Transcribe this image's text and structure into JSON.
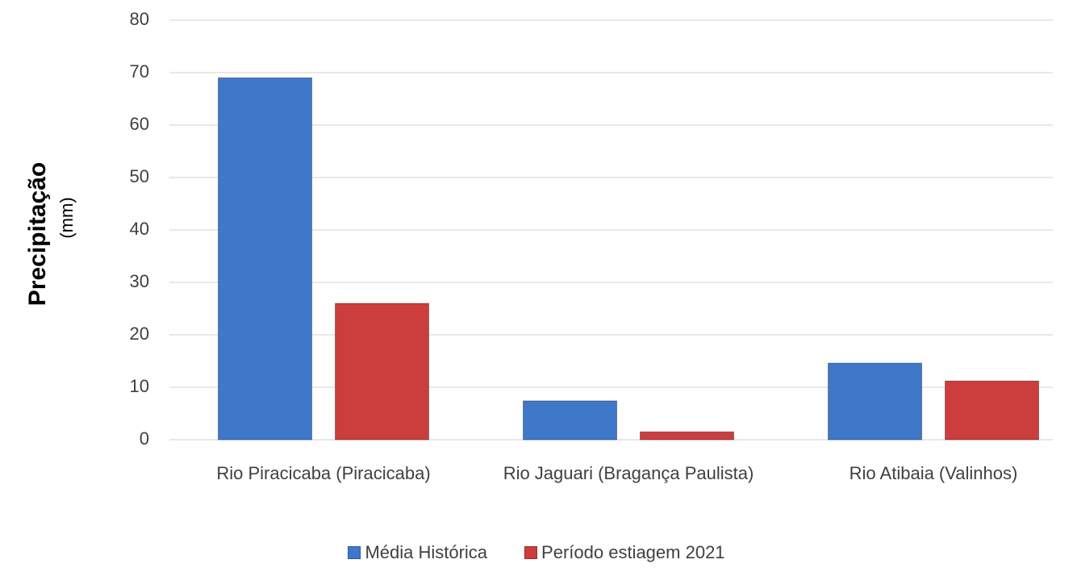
{
  "chart_data": {
    "type": "bar",
    "ylabel": "Precipitação",
    "ylabel_unit": "(mm)",
    "categories": [
      "Rio Piracicaba (Piracicaba)",
      "Rio Jaguari (Bragança Paulista)",
      "Rio Atibaia (Valinhos)"
    ],
    "series": [
      {
        "name": "Média Histórica",
        "color": "#3f77c9",
        "values": [
          69,
          7.4,
          14.6
        ]
      },
      {
        "name": "Período estiagem 2021",
        "color": "#cc3d3d",
        "values": [
          26,
          1.5,
          11.2
        ]
      }
    ],
    "ylim": [
      0,
      80
    ],
    "yticks": [
      0,
      10,
      20,
      30,
      40,
      50,
      60,
      70,
      80
    ],
    "grid": true,
    "legend": "bottom"
  }
}
